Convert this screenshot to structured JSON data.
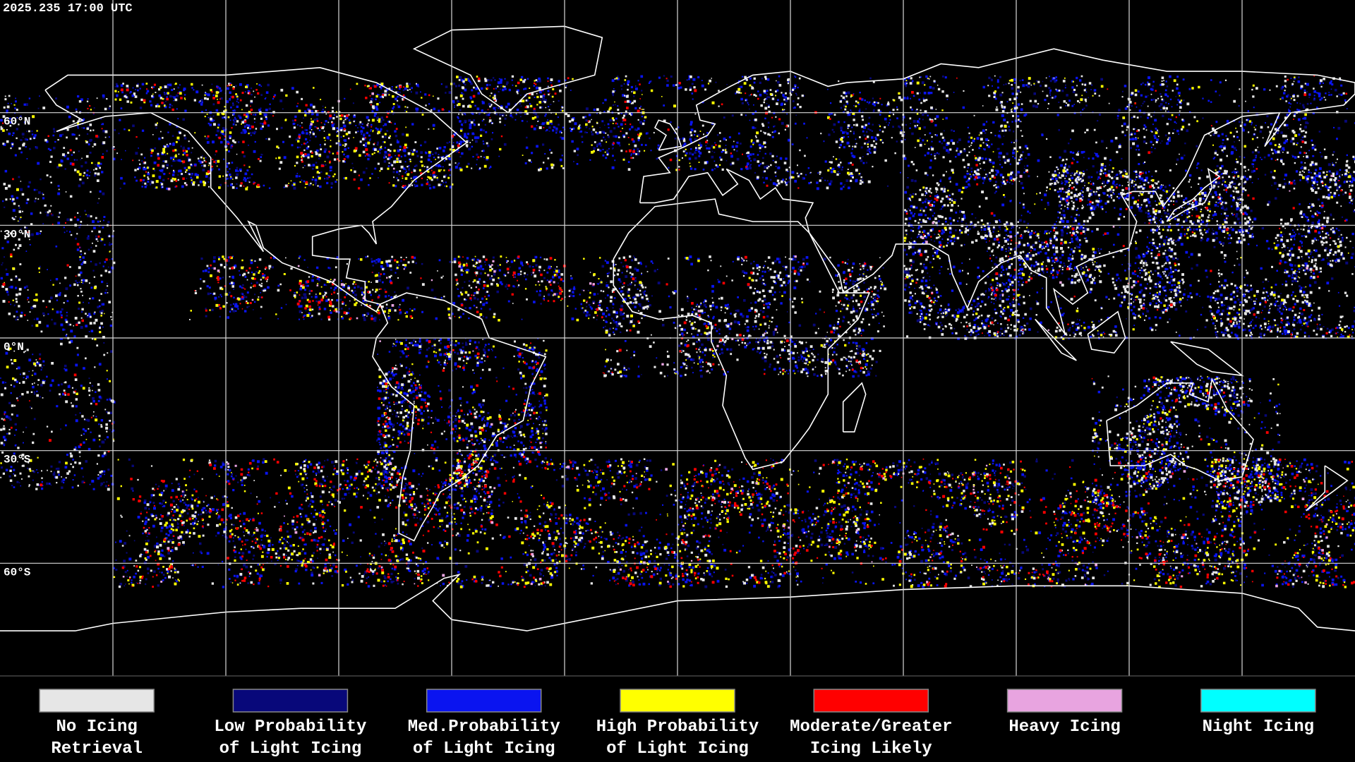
{
  "header": {
    "timestamp": "2025.235 17:00 UTC"
  },
  "map": {
    "latitudes": [
      {
        "value": 60,
        "label": "60°N"
      },
      {
        "value": 30,
        "label": "30°N"
      },
      {
        "value": 0,
        "label": "0°N"
      },
      {
        "value": -30,
        "label": "30°S"
      },
      {
        "value": -60,
        "label": "60°S"
      }
    ]
  },
  "legend": {
    "items": [
      {
        "lines": [
          "No Icing",
          "Retrieval"
        ],
        "color": "#e6e6e6"
      },
      {
        "lines": [
          "Low Probability",
          "of Light Icing"
        ],
        "color": "#08087a"
      },
      {
        "lines": [
          "Med.Probability",
          "of Light Icing"
        ],
        "color": "#0a14f0"
      },
      {
        "lines": [
          "High Probability",
          "of Light Icing"
        ],
        "color": "#ffff00"
      },
      {
        "lines": [
          "Moderate/Greater",
          "Icing Likely"
        ],
        "color": "#ff0000"
      },
      {
        "lines": [
          "Heavy Icing"
        ],
        "color": "#e8a4e0"
      },
      {
        "lines": [
          "Night Icing"
        ],
        "color": "#00ffff"
      }
    ]
  }
}
